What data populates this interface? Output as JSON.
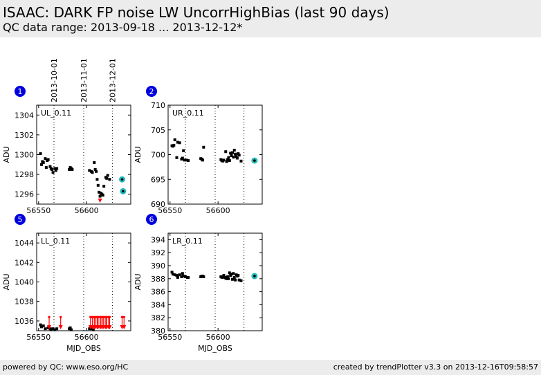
{
  "header": {
    "title": "ISAAC: DARK FP noise LW UncorrHighBias (last 90 days)",
    "subtitle": "QC data range: 2013-09-18 ... 2013-12-12*"
  },
  "footer": {
    "left": "powered by QC: www.eso.org/HC",
    "right": "created by trendPlotter v3.3 on 2013-12-16T09:58:57"
  },
  "date_markers": [
    {
      "label": "2013-10-01",
      "mjd": 56566
    },
    {
      "label": "2013-11-01",
      "mjd": 56597
    },
    {
      "label": "2013-12-01",
      "mjd": 56627
    }
  ],
  "colors": {
    "marker": "#0000dd",
    "data": "#000000",
    "limit": "#ff0000",
    "latest": "#22bbbb"
  },
  "chart_data": [
    {
      "type": "scatter",
      "panel_number": "1",
      "tag": "UL_0.11",
      "xlabel": "",
      "ylabel": "ADU",
      "xlim": [
        56548,
        56646
      ],
      "ylim": [
        1295,
        1305
      ],
      "xticks": [
        56550,
        56600
      ],
      "xtick_labels": [
        "56550",
        "56600"
      ],
      "yticks": [
        1296,
        1298,
        1300,
        1302,
        1304
      ],
      "x": [
        56552,
        56553,
        56554,
        56555,
        56557,
        56558,
        56559,
        56560,
        56562,
        56563,
        56564,
        56565,
        56567,
        56568,
        56569,
        56582,
        56583,
        56584,
        56585,
        56603,
        56605,
        56606,
        56608,
        56609,
        56610,
        56611,
        56612,
        56613,
        56614,
        56615,
        56616,
        56617,
        56618,
        56620,
        56621,
        56622,
        56624
      ],
      "y": [
        1300.1,
        1299.0,
        1299.3,
        1299.2,
        1299.6,
        1298.7,
        1299.4,
        1299.5,
        1298.8,
        1298.6,
        1298.5,
        1298.2,
        1298.6,
        1298.4,
        1298.6,
        1298.5,
        1298.7,
        1298.6,
        1298.5,
        1298.4,
        1298.3,
        1298.2,
        1299.2,
        1298.5,
        1298.3,
        1297.5,
        1296.9,
        1296.2,
        1295.8,
        1296.1,
        1296.0,
        1295.9,
        1296.8,
        1297.7,
        1297.6,
        1297.9,
        1297.5
      ],
      "limit_points": [
        {
          "x": 56614,
          "y": 1295.4
        }
      ],
      "latest_points": [
        {
          "x": 56637,
          "y": 1297.5
        },
        {
          "x": 56638,
          "y": 1296.3
        }
      ]
    },
    {
      "type": "scatter",
      "panel_number": "2",
      "tag": "UR_0.11",
      "xlabel": "",
      "ylabel": "ADU",
      "xlim": [
        56548,
        56646
      ],
      "ylim": [
        690,
        710
      ],
      "xticks": [
        56550,
        56600
      ],
      "xtick_labels": [
        "56550",
        "56600"
      ],
      "yticks": [
        690,
        695,
        700,
        705,
        710
      ],
      "x": [
        56552,
        56553,
        56554,
        56555,
        56557,
        56558,
        56560,
        56562,
        56563,
        56564,
        56565,
        56567,
        56569,
        56582,
        56583,
        56584,
        56585,
        56603,
        56604,
        56605,
        56606,
        56608,
        56609,
        56610,
        56611,
        56612,
        56613,
        56614,
        56615,
        56616,
        56617,
        56618,
        56619,
        56620,
        56621,
        56622,
        56624
      ],
      "y": [
        701.8,
        701.7,
        701.9,
        703.0,
        699.4,
        702.5,
        702.4,
        699.1,
        699.3,
        700.8,
        698.9,
        698.9,
        698.8,
        699.2,
        699.1,
        698.9,
        701.5,
        699.0,
        698.8,
        698.7,
        698.9,
        700.6,
        698.6,
        699.0,
        699.4,
        698.8,
        700.3,
        699.8,
        700.4,
        699.5,
        700.9,
        700.1,
        699.6,
        699.3,
        700.2,
        699.9,
        698.7
      ],
      "limit_points": [],
      "latest_points": [
        {
          "x": 56638,
          "y": 698.8
        }
      ]
    },
    {
      "type": "scatter",
      "panel_number": "5",
      "tag": "LL_0.11",
      "xlabel": "MJD_OBS",
      "ylabel": "ADU",
      "xlim": [
        56548,
        56646
      ],
      "ylim": [
        1035,
        1045
      ],
      "xticks": [
        56550,
        56600
      ],
      "xtick_labels": [
        "56550",
        "56600"
      ],
      "yticks": [
        1036,
        1038,
        1040,
        1042,
        1044
      ],
      "x": [
        56552,
        56553,
        56555,
        56557,
        56560,
        56562,
        56563,
        56565,
        56567,
        56569,
        56582,
        56583,
        56584,
        56603,
        56605,
        56607
      ],
      "y": [
        1035.6,
        1035.4,
        1035.5,
        1035.2,
        1035.3,
        1035.2,
        1035.1,
        1035.2,
        1035.1,
        1035.2,
        1035.2,
        1035.3,
        1035.1,
        1035.2,
        1035.2,
        1035.1
      ],
      "limit_points": [
        {
          "x": 56561,
          "y": 1036.4
        },
        {
          "x": 56573,
          "y": 1036.4
        },
        {
          "x": 56604,
          "y": 1036.4
        },
        {
          "x": 56606,
          "y": 1036.4
        },
        {
          "x": 56608,
          "y": 1036.4
        },
        {
          "x": 56609,
          "y": 1036.4
        },
        {
          "x": 56611,
          "y": 1036.4
        },
        {
          "x": 56612,
          "y": 1036.4
        },
        {
          "x": 56614,
          "y": 1036.4
        },
        {
          "x": 56615,
          "y": 1036.4
        },
        {
          "x": 56617,
          "y": 1036.4
        },
        {
          "x": 56618,
          "y": 1036.4
        },
        {
          "x": 56620,
          "y": 1036.4
        },
        {
          "x": 56621,
          "y": 1036.4
        },
        {
          "x": 56623,
          "y": 1036.4
        },
        {
          "x": 56624,
          "y": 1036.4
        },
        {
          "x": 56637,
          "y": 1036.4
        },
        {
          "x": 56639,
          "y": 1036.4
        }
      ],
      "latest_points": []
    },
    {
      "type": "scatter",
      "panel_number": "6",
      "tag": "LR_0.11",
      "xlabel": "MJD_OBS",
      "ylabel": "ADU",
      "xlim": [
        56548,
        56646
      ],
      "ylim": [
        380,
        395
      ],
      "xticks": [
        56550,
        56600
      ],
      "xtick_labels": [
        "56550",
        "56600"
      ],
      "yticks": [
        380,
        382,
        384,
        386,
        388,
        390,
        392,
        394
      ],
      "x": [
        56552,
        56553,
        56555,
        56557,
        56558,
        56560,
        56562,
        56563,
        56564,
        56566,
        56568,
        56569,
        56582,
        56583,
        56584,
        56585,
        56603,
        56604,
        56605,
        56606,
        56607,
        56608,
        56609,
        56610,
        56611,
        56612,
        56613,
        56614,
        56615,
        56616,
        56617,
        56618,
        56619,
        56620,
        56621,
        56622,
        56624
      ],
      "y": [
        389.0,
        388.7,
        388.6,
        388.5,
        388.2,
        388.6,
        388.3,
        388.8,
        388.4,
        388.3,
        388.2,
        388.2,
        388.3,
        388.4,
        388.4,
        388.3,
        388.3,
        388.2,
        388.3,
        388.5,
        388.2,
        388.1,
        388.0,
        388.3,
        388.0,
        388.9,
        388.5,
        388.7,
        387.9,
        388.8,
        388.2,
        387.8,
        388.6,
        388.4,
        388.5,
        387.8,
        387.7
      ],
      "limit_points": [],
      "latest_points": [
        {
          "x": 56638,
          "y": 388.4
        }
      ]
    }
  ]
}
